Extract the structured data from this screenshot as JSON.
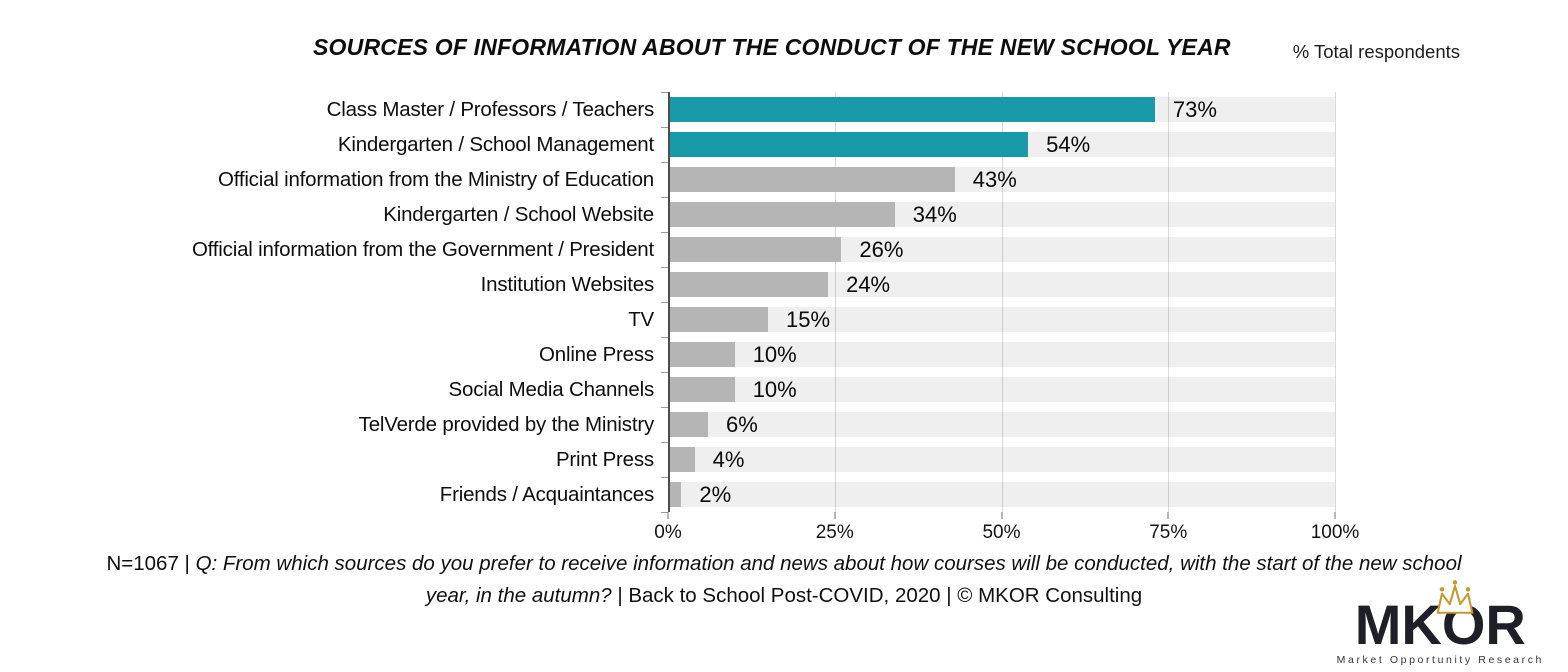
{
  "header": {
    "title": "SOURCES OF INFORMATION ABOUT THE CONDUCT OF THE NEW SCHOOL YEAR",
    "unit_note": "% Total respondents"
  },
  "chart_data": {
    "type": "bar",
    "orientation": "horizontal",
    "title": "SOURCES OF INFORMATION ABOUT THE CONDUCT OF THE NEW SCHOOL YEAR",
    "unit_note": "% Total respondents",
    "categories": [
      "Class Master / Professors / Teachers",
      "Kindergarten / School Management",
      "Official information from the Ministry of Education",
      "Kindergarten / School Website",
      "Official information from the Government / President",
      "Institution Websites",
      "TV",
      "Online Press",
      "Social Media Channels",
      "TelVerde provided by the Ministry",
      "Print Press",
      "Friends / Acquaintances"
    ],
    "values": [
      73,
      54,
      43,
      34,
      26,
      24,
      15,
      10,
      10,
      6,
      4,
      2
    ],
    "value_labels": [
      "73%",
      "54%",
      "43%",
      "34%",
      "26%",
      "24%",
      "15%",
      "10%",
      "10%",
      "6%",
      "4%",
      "2%"
    ],
    "highlight_count": 2,
    "highlight_color": "#189aa8",
    "bar_color": "#b5b5b5",
    "track_color": "rgba(17,17,17,0.065)",
    "grid_color": "#d9d9d9",
    "x_ticks": [
      "0%",
      "25%",
      "50%",
      "75%",
      "100%"
    ],
    "x_tick_positions": [
      0,
      25,
      50,
      75,
      100
    ],
    "xlim": [
      0,
      100
    ],
    "grid": true,
    "legend": "none"
  },
  "footer": {
    "prefix": "N=1067 | ",
    "question": "Q: From which sources do you prefer to receive information and news about how courses will be conducted, with the start of the new school year, in the autumn?",
    "suffix": " | Back to School Post-COVID, 2020 | © MKOR Consulting"
  },
  "logo": {
    "text": "MKOR",
    "tagline": "Market Opportunity Research",
    "text_color": "#1f1f27",
    "crown_color": "#c49a2e"
  }
}
